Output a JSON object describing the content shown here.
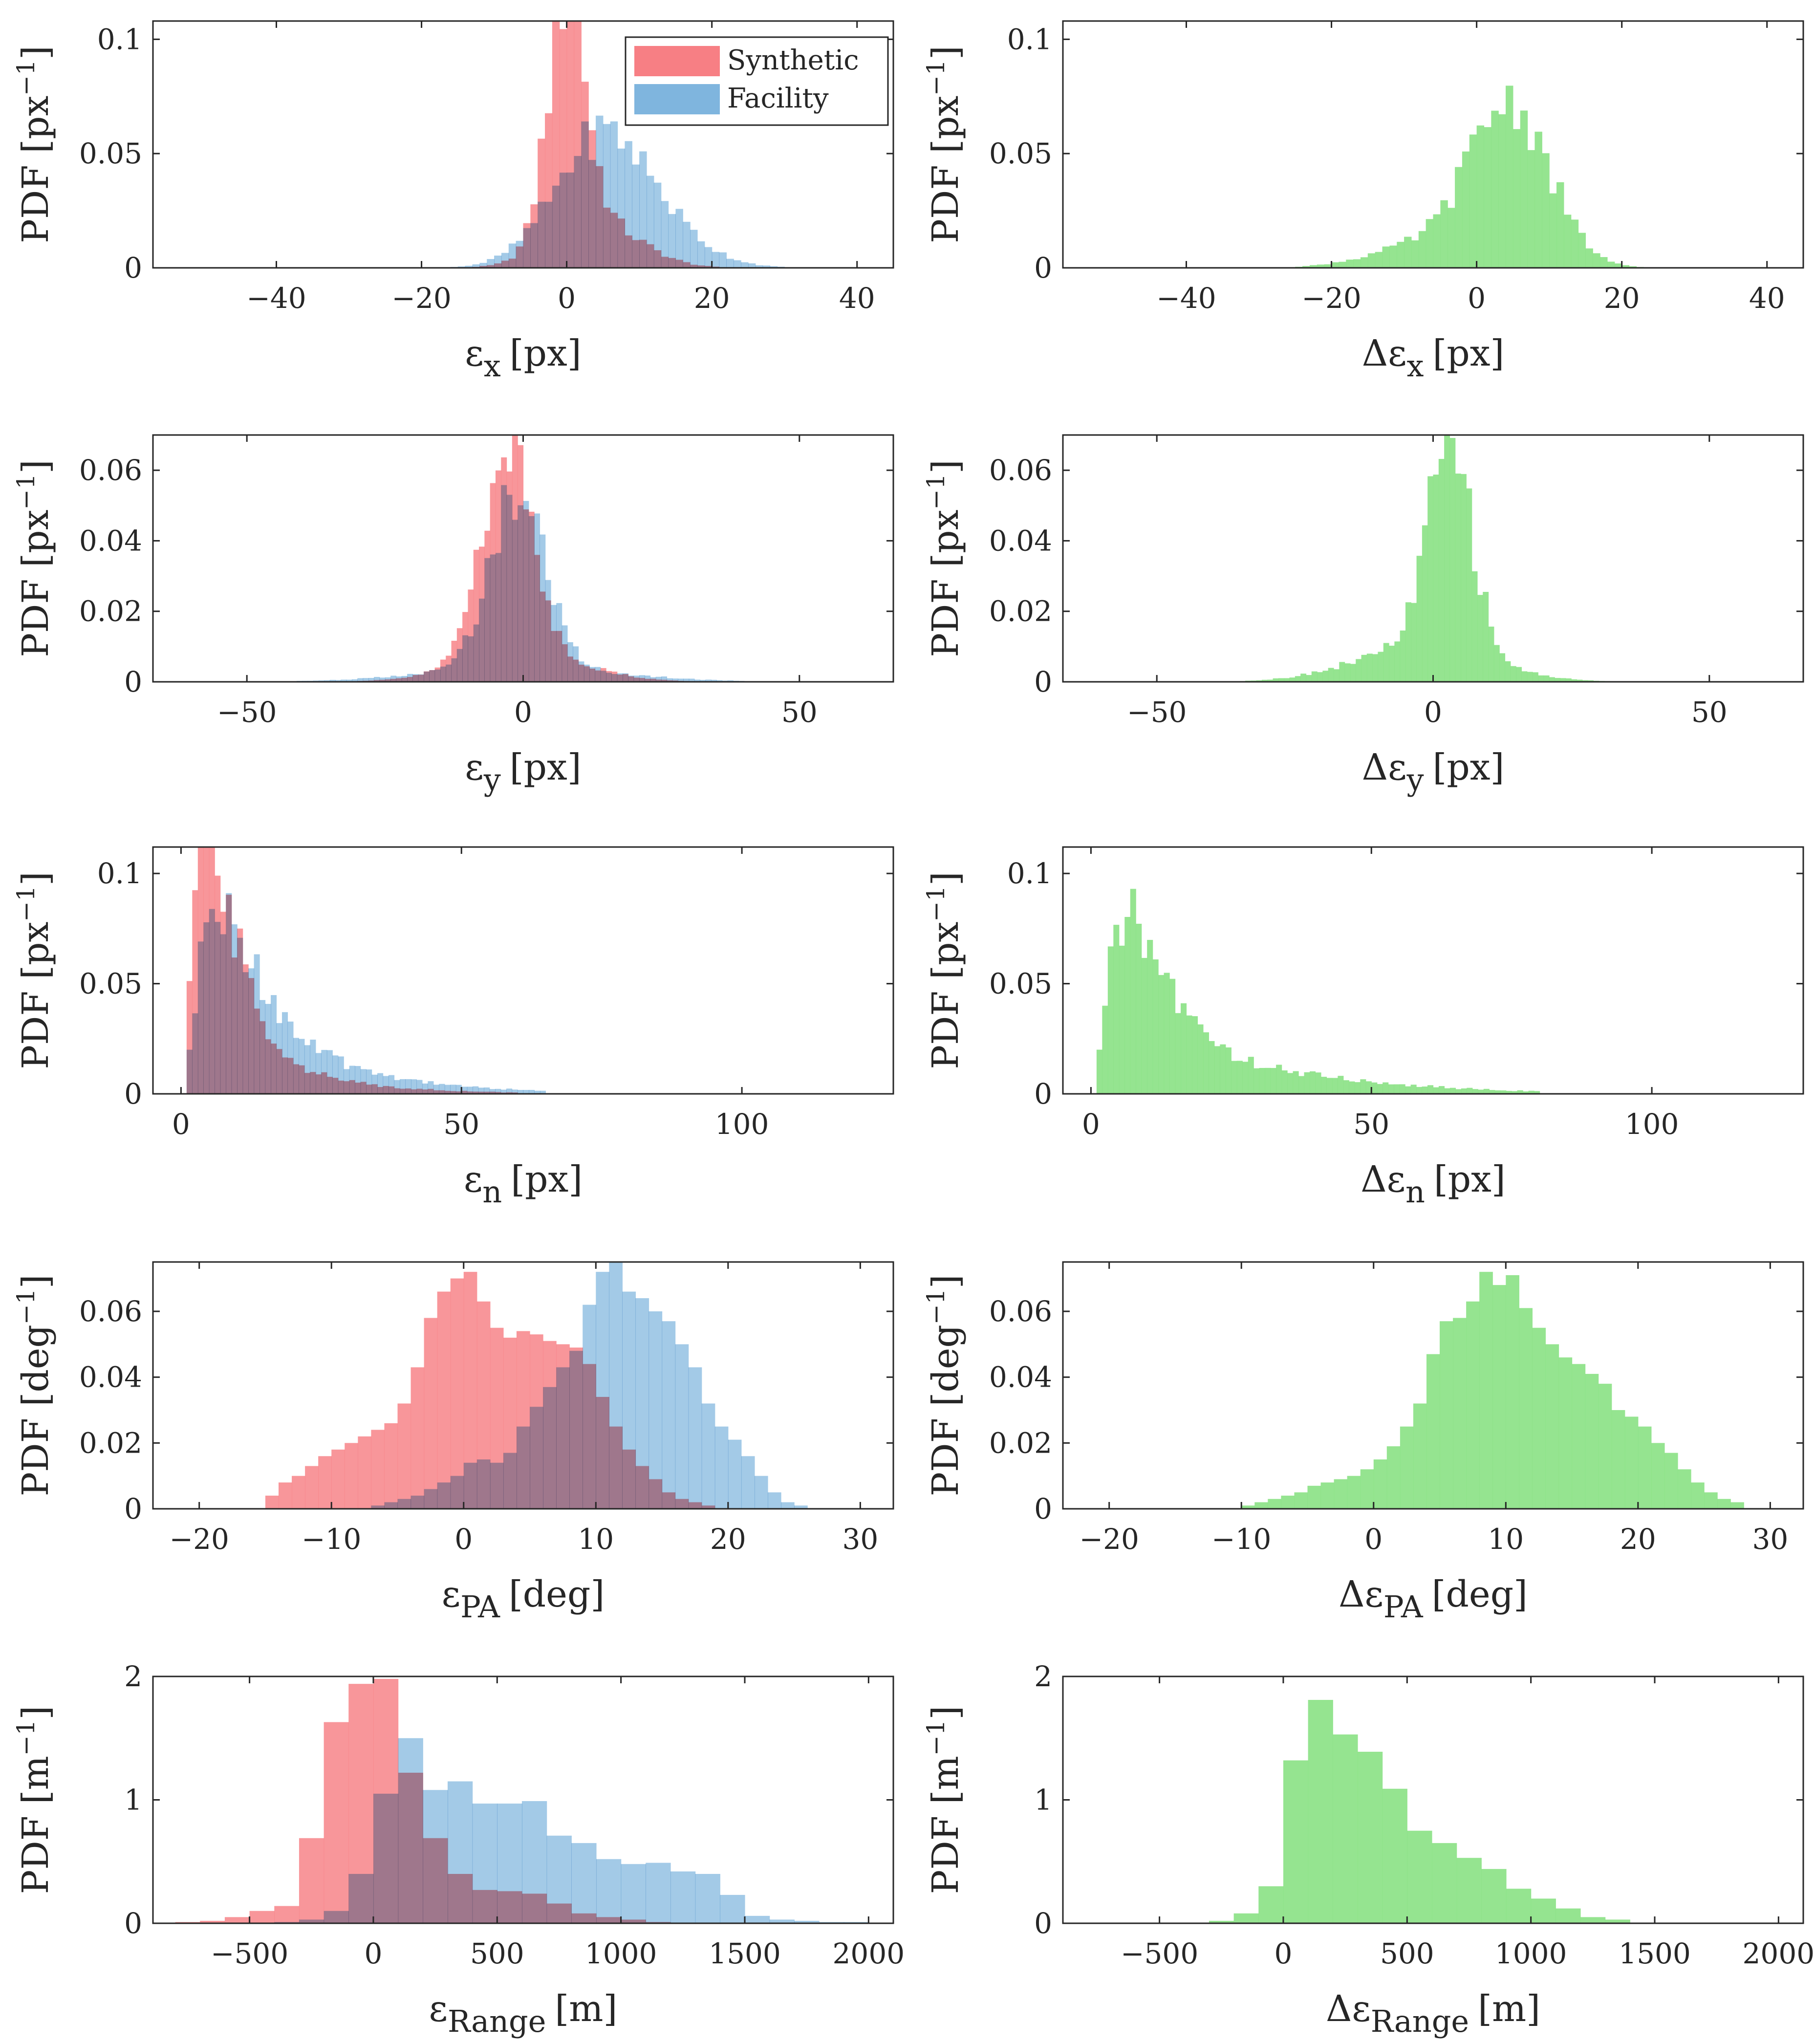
{
  "colors": {
    "synthetic": "#f77f84",
    "facility": "#7fb5de",
    "difference": "#89e184",
    "overlap": "#80638a"
  },
  "legend": [
    {
      "name": "Synthetic",
      "color": "#f77f84"
    },
    {
      "name": "Facility",
      "color": "#7fb5de"
    }
  ],
  "chart_data": [
    {
      "id": "ex",
      "type": "bar",
      "position": "row1-left",
      "xlabel_base": "ε",
      "xlabel_sub": "x",
      "xlabel_unit": "[px]",
      "ylabel_base": "PDF [px",
      "ylabel_sup": "−1",
      "ylabel_tail": "]",
      "xlim": [
        -57,
        45
      ],
      "ylim": [
        0,
        0.108
      ],
      "xticks": [
        -40,
        -20,
        0,
        20,
        40
      ],
      "xtick_labels": [
        "−40",
        "−20",
        "0",
        "20",
        "40"
      ],
      "yticks": [
        0,
        0.05,
        0.1
      ],
      "ytick_labels": [
        "0",
        "0.05",
        "0.1"
      ],
      "legend": true,
      "series": [
        {
          "name": "Synthetic",
          "kind": "gauss",
          "params": [
            [
              0,
              2.6,
              0.105
            ],
            [
              4,
              6,
              0.02
            ]
          ],
          "range": [
            -30,
            30
          ],
          "bin": 1
        },
        {
          "name": "Facility",
          "kind": "gauss",
          "params": [
            [
              5,
              6.5,
              0.058
            ],
            [
              15,
              6,
              0.007
            ]
          ],
          "range": [
            -30,
            40
          ],
          "bin": 1
        }
      ]
    },
    {
      "id": "dex",
      "type": "bar",
      "position": "row1-right",
      "xlabel_base": "Δε",
      "xlabel_sub": "x",
      "xlabel_unit": "[px]",
      "ylabel_base": "PDF [px",
      "ylabel_sup": "−1",
      "ylabel_tail": "]",
      "xlim": [
        -57,
        45
      ],
      "ylim": [
        0,
        0.108
      ],
      "xticks": [
        -40,
        -20,
        0,
        20,
        40
      ],
      "xtick_labels": [
        "−40",
        "−20",
        "0",
        "20",
        "40"
      ],
      "yticks": [
        0,
        0.05,
        0.1
      ],
      "ytick_labels": [
        "0",
        "0.05",
        "0.1"
      ],
      "series": [
        {
          "name": "Difference",
          "kind": "gauss",
          "params": [
            [
              4.5,
              5.5,
              0.071
            ],
            [
              -8,
              7,
              0.009
            ]
          ],
          "range": [
            -30,
            40
          ],
          "bin": 1
        }
      ]
    },
    {
      "id": "ey",
      "type": "bar",
      "position": "row2-left",
      "xlabel_base": "ε",
      "xlabel_sub": "y",
      "xlabel_unit": "[px]",
      "ylabel_base": "PDF [px",
      "ylabel_sup": "−1",
      "ylabel_tail": "]",
      "xlim": [
        -67,
        67
      ],
      "ylim": [
        0,
        0.07
      ],
      "xticks": [
        -50,
        0,
        50
      ],
      "xtick_labels": [
        "−50",
        "0",
        "50"
      ],
      "yticks": [
        0,
        0.02,
        0.04,
        0.06
      ],
      "ytick_labels": [
        "0",
        "0.02",
        "0.04",
        "0.06"
      ],
      "series": [
        {
          "name": "Synthetic",
          "kind": "gauss",
          "params": [
            [
              -3,
              4.5,
              0.06
            ],
            [
              0,
              11,
              0.008
            ]
          ],
          "range": [
            -45,
            30
          ],
          "bin": 1
        },
        {
          "name": "Facility",
          "kind": "gauss",
          "params": [
            [
              -1,
              5,
              0.05
            ],
            [
              0,
              17,
              0.004
            ]
          ],
          "range": [
            -50,
            40
          ],
          "bin": 1
        }
      ]
    },
    {
      "id": "dey",
      "type": "bar",
      "position": "row2-right",
      "xlabel_base": "Δε",
      "xlabel_sub": "y",
      "xlabel_unit": "[px]",
      "ylabel_base": "PDF [px",
      "ylabel_sup": "−1",
      "ylabel_tail": "]",
      "xlim": [
        -67,
        67
      ],
      "ylim": [
        0,
        0.07
      ],
      "xticks": [
        -50,
        0,
        50
      ],
      "xtick_labels": [
        "−50",
        "0",
        "50"
      ],
      "yticks": [
        0,
        0.02,
        0.04,
        0.06
      ],
      "ytick_labels": [
        "0",
        "0.02",
        "0.04",
        "0.06"
      ],
      "series": [
        {
          "name": "Difference",
          "kind": "gauss",
          "params": [
            [
              3,
              4,
              0.058
            ],
            [
              -2,
              12,
              0.01
            ]
          ],
          "range": [
            -40,
            60
          ],
          "bin": 1
        }
      ]
    },
    {
      "id": "en",
      "type": "bar",
      "position": "row3-left",
      "xlabel_base": "ε",
      "xlabel_sub": "n",
      "xlabel_unit": "[px]",
      "ylabel_base": "PDF [px",
      "ylabel_sup": "−1",
      "ylabel_tail": "]",
      "xlim": [
        -5,
        127
      ],
      "ylim": [
        0,
        0.112
      ],
      "xticks": [
        0,
        50,
        100
      ],
      "xtick_labels": [
        "0",
        "50",
        "100"
      ],
      "yticks": [
        0,
        0.05,
        0.1
      ],
      "ytick_labels": [
        "0",
        "0.05",
        "0.1"
      ],
      "series": [
        {
          "name": "Synthetic",
          "kind": "skew",
          "params": [
            [
              0.5,
              5.5,
              2.2,
              4,
              0.105
            ],
            [
              0.5,
              12,
              2.2,
              12,
              0.01
            ]
          ],
          "range": [
            0,
            60
          ],
          "bin": 1
        },
        {
          "name": "Facility",
          "kind": "skew",
          "params": [
            [
              0.5,
              7.5,
              2.5,
              6,
              0.072
            ],
            [
              0.5,
              14,
              2.5,
              16,
              0.015
            ]
          ],
          "range": [
            0,
            65
          ],
          "bin": 1
        }
      ]
    },
    {
      "id": "den",
      "type": "bar",
      "position": "row3-right",
      "xlabel_base": "Δε",
      "xlabel_sub": "n",
      "xlabel_unit": "[px]",
      "ylabel_base": "PDF [px",
      "ylabel_sup": "−1",
      "ylabel_tail": "]",
      "xlim": [
        -5,
        127
      ],
      "ylim": [
        0,
        0.112
      ],
      "xticks": [
        0,
        50,
        100
      ],
      "xtick_labels": [
        "0",
        "50",
        "100"
      ],
      "yticks": [
        0,
        0.05,
        0.1
      ],
      "ytick_labels": [
        "0",
        "0.05",
        "0.1"
      ],
      "series": [
        {
          "name": "Difference",
          "kind": "skew",
          "params": [
            [
              0.5,
              7.5,
              2.5,
              6,
              0.072
            ],
            [
              0.5,
              15,
              2.5,
              20,
              0.012
            ]
          ],
          "range": [
            0,
            80
          ],
          "bin": 1
        }
      ]
    },
    {
      "id": "epa",
      "type": "bar",
      "position": "row4-left",
      "xlabel_base": "ε",
      "xlabel_sub": "PA",
      "xlabel_unit": "[deg]",
      "ylabel_base": "PDF [deg",
      "ylabel_sup": "−1",
      "ylabel_tail": "]",
      "xlim": [
        -23.5,
        32.5
      ],
      "ylim": [
        0,
        0.075
      ],
      "xticks": [
        -20,
        -10,
        0,
        10,
        20,
        30
      ],
      "xtick_labels": [
        "−20",
        "−10",
        "0",
        "10",
        "20",
        "30"
      ],
      "yticks": [
        0,
        0.02,
        0.04,
        0.06
      ],
      "ytick_labels": [
        "0",
        "0.02",
        "0.04",
        "0.06"
      ],
      "series": [
        {
          "name": "Synthetic",
          "kind": "bins",
          "x0": -15,
          "width": 1,
          "values": [
            0.004,
            0.008,
            0.01,
            0.013,
            0.016,
            0.018,
            0.02,
            0.022,
            0.024,
            0.026,
            0.032,
            0.043,
            0.058,
            0.066,
            0.07,
            0.072,
            0.063,
            0.055,
            0.052,
            0.054,
            0.053,
            0.051,
            0.05,
            0.049,
            0.044,
            0.034,
            0.025,
            0.018,
            0.013,
            0.009,
            0.005,
            0.003,
            0.002,
            0.001
          ]
        },
        {
          "name": "Facility",
          "kind": "bins",
          "x0": -7,
          "width": 1,
          "values": [
            0.001,
            0.002,
            0.003,
            0.004,
            0.006,
            0.008,
            0.01,
            0.014,
            0.015,
            0.014,
            0.017,
            0.025,
            0.031,
            0.037,
            0.043,
            0.048,
            0.062,
            0.072,
            0.075,
            0.066,
            0.064,
            0.06,
            0.057,
            0.05,
            0.043,
            0.032,
            0.025,
            0.021,
            0.016,
            0.01,
            0.005,
            0.002,
            0.001
          ]
        }
      ]
    },
    {
      "id": "depa",
      "type": "bar",
      "position": "row4-right",
      "xlabel_base": "Δε",
      "xlabel_sub": "PA",
      "xlabel_unit": "[deg]",
      "ylabel_base": "PDF [deg",
      "ylabel_sup": "−1",
      "ylabel_tail": "]",
      "xlim": [
        -23.5,
        32.5
      ],
      "ylim": [
        0,
        0.075
      ],
      "xticks": [
        -20,
        -10,
        0,
        10,
        20,
        30
      ],
      "xtick_labels": [
        "−20",
        "−10",
        "0",
        "10",
        "20",
        "30"
      ],
      "yticks": [
        0,
        0.02,
        0.04,
        0.06
      ],
      "ytick_labels": [
        "0",
        "0.02",
        "0.04",
        "0.06"
      ],
      "series": [
        {
          "name": "Difference",
          "kind": "bins",
          "x0": -10,
          "width": 1,
          "values": [
            0.001,
            0.002,
            0.003,
            0.004,
            0.005,
            0.007,
            0.008,
            0.009,
            0.01,
            0.012,
            0.015,
            0.019,
            0.025,
            0.032,
            0.047,
            0.057,
            0.058,
            0.063,
            0.072,
            0.068,
            0.071,
            0.061,
            0.055,
            0.05,
            0.046,
            0.044,
            0.041,
            0.038,
            0.03,
            0.028,
            0.025,
            0.02,
            0.017,
            0.012,
            0.008,
            0.005,
            0.003,
            0.002
          ]
        }
      ]
    },
    {
      "id": "erange",
      "type": "bar",
      "position": "row5-left",
      "xlabel_base": "ε",
      "xlabel_sub": "Range",
      "xlabel_unit": "[m]",
      "ylabel_base": "PDF [m",
      "ylabel_sup": "−1",
      "ylabel_tail": "]",
      "xlim": [
        -890,
        2100
      ],
      "ylim": [
        0,
        2
      ],
      "xticks": [
        -500,
        0,
        500,
        1000,
        1500,
        2000
      ],
      "xtick_labels": [
        "−500",
        "0",
        "500",
        "1000",
        "1500",
        "2000"
      ],
      "yticks": [
        0,
        1,
        2
      ],
      "ytick_labels": [
        "0",
        "1",
        "2"
      ],
      "series": [
        {
          "name": "Synthetic",
          "kind": "bins",
          "x0": -800,
          "width": 100,
          "values": [
            0.01,
            0.02,
            0.05,
            0.1,
            0.14,
            0.69,
            1.63,
            1.94,
            1.98,
            1.22,
            0.69,
            0.4,
            0.27,
            0.26,
            0.24,
            0.16,
            0.08,
            0.05,
            0.03,
            0.01
          ]
        },
        {
          "name": "Facility",
          "kind": "bins",
          "x0": -400,
          "width": 100,
          "values": [
            0.01,
            0.03,
            0.1,
            0.4,
            1.05,
            1.5,
            1.08,
            1.15,
            0.97,
            0.97,
            0.99,
            0.71,
            0.65,
            0.52,
            0.48,
            0.49,
            0.42,
            0.4,
            0.23,
            0.06,
            0.03,
            0.02,
            0.01,
            0.01
          ]
        }
      ]
    },
    {
      "id": "derange",
      "type": "bar",
      "position": "row5-right",
      "xlabel_base": "Δε",
      "xlabel_sub": "Range",
      "xlabel_unit": "[m]",
      "ylabel_base": "PDF [m",
      "ylabel_sup": "−1",
      "ylabel_tail": "]",
      "xlim": [
        -890,
        2100
      ],
      "ylim": [
        0,
        2
      ],
      "xticks": [
        -500,
        0,
        500,
        1000,
        1500,
        2000
      ],
      "xtick_labels": [
        "−500",
        "0",
        "500",
        "1000",
        "1500",
        "2000"
      ],
      "yticks": [
        0,
        1,
        2
      ],
      "ytick_labels": [
        "0",
        "1",
        "2"
      ],
      "series": [
        {
          "name": "Difference",
          "kind": "bins",
          "x0": -300,
          "width": 100,
          "values": [
            0.02,
            0.08,
            0.3,
            1.32,
            1.81,
            1.53,
            1.39,
            1.09,
            0.75,
            0.65,
            0.53,
            0.44,
            0.28,
            0.2,
            0.12,
            0.05,
            0.03
          ]
        }
      ]
    }
  ]
}
